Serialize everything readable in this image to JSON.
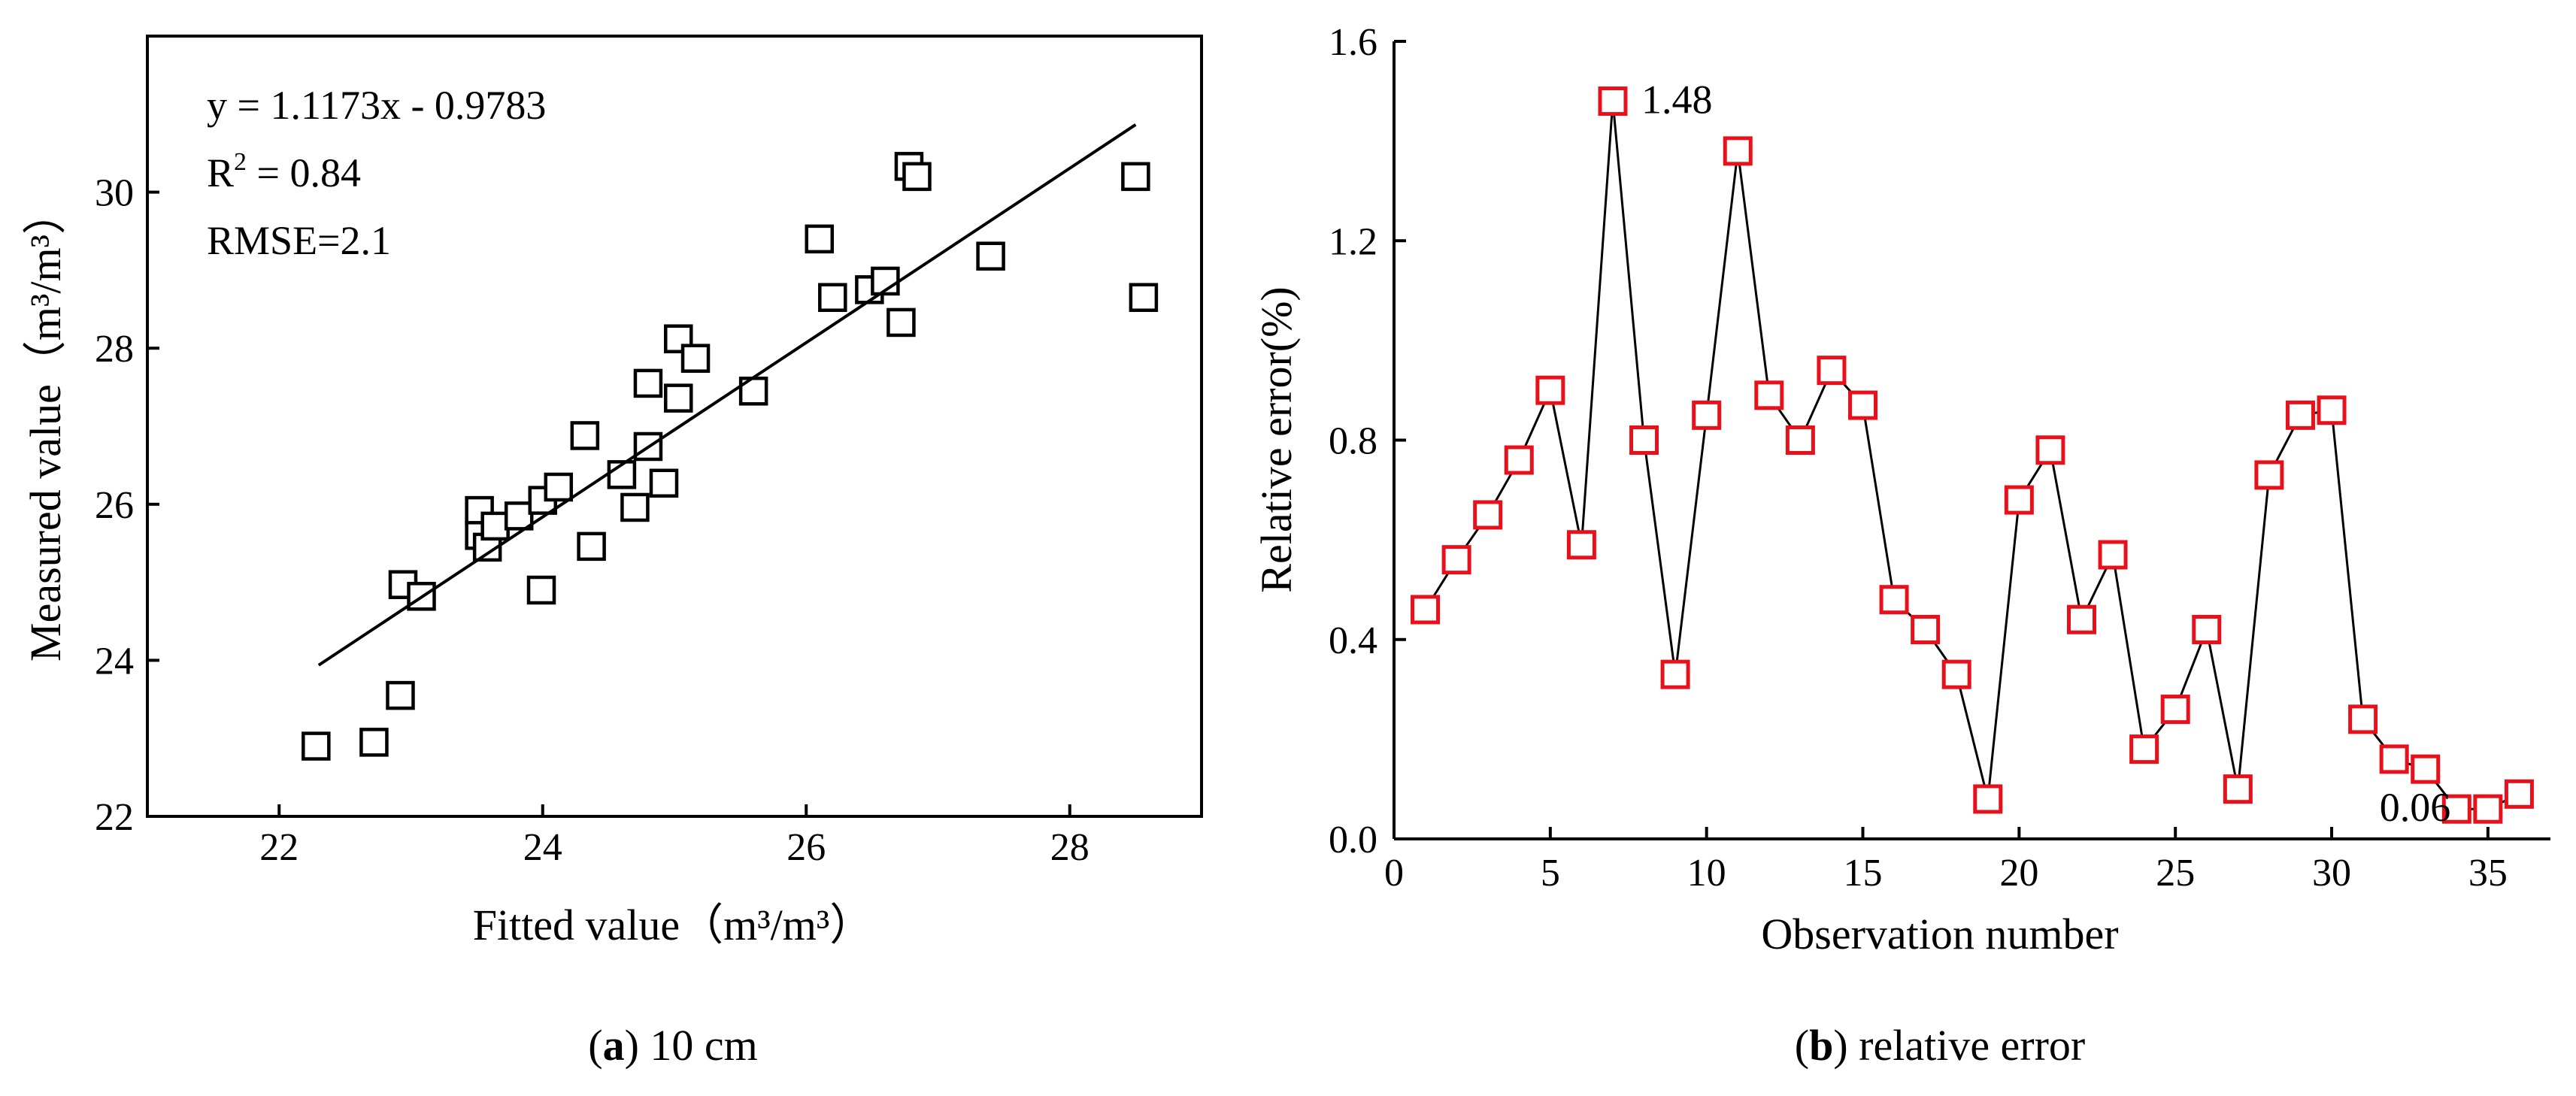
{
  "chart_data": [
    {
      "type": "scatter",
      "panel": "a",
      "caption_letter": "a",
      "caption_text": " 10 cm",
      "xlabel": "Fitted value",
      "ylabel": "Measured value",
      "unit_label": "（m³/m³）",
      "xlim": [
        21,
        29
      ],
      "ylim": [
        22,
        32
      ],
      "xticks": [
        22,
        24,
        26,
        28
      ],
      "yticks": [
        22,
        24,
        26,
        28,
        30
      ],
      "equation": "y = 1.1173x - 0.9783",
      "r2_prefix": "R",
      "r2_sup": "2",
      "r2_suffix": " = 0.84",
      "rmse": "RMSE=2.1",
      "fit_line": {
        "slope": 1.1173,
        "intercept": -0.9783,
        "x_range": [
          22.3,
          28.5
        ]
      },
      "points": [
        {
          "x": 22.28,
          "y": 22.9
        },
        {
          "x": 22.72,
          "y": 22.95
        },
        {
          "x": 22.92,
          "y": 23.55
        },
        {
          "x": 22.94,
          "y": 24.97
        },
        {
          "x": 23.08,
          "y": 24.82
        },
        {
          "x": 23.52,
          "y": 25.92
        },
        {
          "x": 23.52,
          "y": 25.6
        },
        {
          "x": 23.58,
          "y": 25.45
        },
        {
          "x": 23.64,
          "y": 25.72
        },
        {
          "x": 23.82,
          "y": 25.85
        },
        {
          "x": 23.99,
          "y": 24.9
        },
        {
          "x": 24.0,
          "y": 26.05
        },
        {
          "x": 24.12,
          "y": 26.22
        },
        {
          "x": 24.32,
          "y": 26.88
        },
        {
          "x": 24.37,
          "y": 25.46
        },
        {
          "x": 24.6,
          "y": 26.38
        },
        {
          "x": 24.7,
          "y": 25.96
        },
        {
          "x": 24.8,
          "y": 27.55
        },
        {
          "x": 24.8,
          "y": 26.74
        },
        {
          "x": 24.92,
          "y": 26.27
        },
        {
          "x": 25.03,
          "y": 28.12
        },
        {
          "x": 25.03,
          "y": 27.36
        },
        {
          "x": 25.16,
          "y": 27.87
        },
        {
          "x": 25.6,
          "y": 27.45
        },
        {
          "x": 26.1,
          "y": 29.4
        },
        {
          "x": 26.2,
          "y": 28.65
        },
        {
          "x": 26.48,
          "y": 28.75
        },
        {
          "x": 26.6,
          "y": 28.86
        },
        {
          "x": 26.72,
          "y": 28.33
        },
        {
          "x": 26.78,
          "y": 30.33
        },
        {
          "x": 26.84,
          "y": 30.2
        },
        {
          "x": 27.4,
          "y": 29.18
        },
        {
          "x": 28.5,
          "y": 30.2
        },
        {
          "x": 28.56,
          "y": 28.65
        }
      ]
    },
    {
      "type": "line",
      "panel": "b",
      "caption_letter": "b",
      "caption_text": " relative error",
      "xlabel": "Observation number",
      "ylabel": "Relative error(%)",
      "xlim": [
        0,
        37
      ],
      "ylim": [
        0,
        1.6
      ],
      "xticks": [
        0,
        5,
        10,
        15,
        20,
        25,
        30,
        35
      ],
      "yticks": [
        "0.0",
        "0.4",
        "0.8",
        "1.2",
        "1.6"
      ],
      "marker_color": "#e8101a",
      "line_color": "#000000",
      "x": [
        1,
        2,
        3,
        4,
        5,
        6,
        7,
        8,
        9,
        10,
        11,
        12,
        13,
        14,
        15,
        16,
        17,
        18,
        19,
        20,
        21,
        22,
        23,
        24,
        25,
        26,
        27,
        28,
        29,
        30,
        31,
        32,
        33,
        34,
        35,
        36
      ],
      "values": [
        0.46,
        0.56,
        0.65,
        0.76,
        0.9,
        0.59,
        1.48,
        0.8,
        0.33,
        0.85,
        1.38,
        0.89,
        0.8,
        0.94,
        0.87,
        0.48,
        0.42,
        0.33,
        0.08,
        0.68,
        0.78,
        0.44,
        0.57,
        0.18,
        0.26,
        0.42,
        0.1,
        0.73,
        0.85,
        0.86,
        0.24,
        0.16,
        0.14,
        0.06,
        0.06,
        0.09
      ],
      "annotations": [
        {
          "text": "1.48",
          "x": 7,
          "y": 1.48
        },
        {
          "text": "0.06",
          "x": 34,
          "y": 0.06
        }
      ]
    }
  ]
}
